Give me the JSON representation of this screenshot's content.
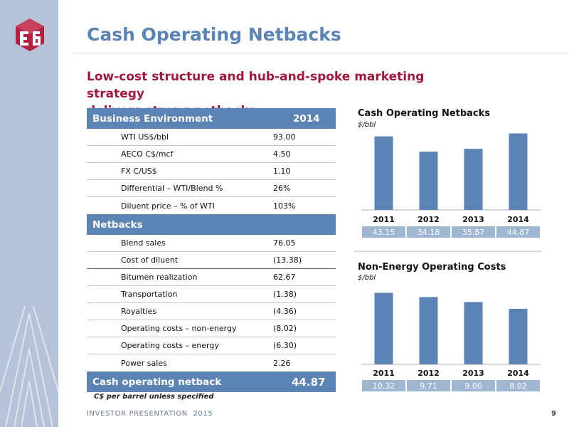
{
  "title": "Cash Operating Netbacks",
  "subtitle_line1": "Low-cost structure and hub-and-spoke marketing strategy",
  "subtitle_line2": "delivers strong netbacks",
  "table": {
    "business_header": "Business Environment",
    "business_year": "2014",
    "business_rows": [
      {
        "label": "WTI US$/bbl",
        "value": "93.00"
      },
      {
        "label": "AECO C$/mcf",
        "value": "4.50"
      },
      {
        "label": "FX C/US$",
        "value": "1.10"
      },
      {
        "label": "Differential – WTI/Blend %",
        "value": "26%"
      },
      {
        "label": "Diluent price – % of WTI",
        "value": "103%"
      }
    ],
    "netbacks_header": "Netbacks",
    "netbacks_rows": [
      {
        "label": "Blend sales",
        "value": "76.05"
      },
      {
        "label": "Cost of diluent",
        "value": "(13.38)"
      },
      {
        "label": "Bitumen realization",
        "value": "62.67"
      },
      {
        "label": "Transportation",
        "value": "(1.38)"
      },
      {
        "label": "Royalties",
        "value": "(4.36)"
      },
      {
        "label": "Operating costs – non-energy",
        "value": "(8.02)"
      },
      {
        "label": "Operating costs – energy",
        "value": "(6.30)"
      },
      {
        "label": "Power sales",
        "value": "2.26"
      }
    ],
    "total_label": "Cash operating netback",
    "total_value": "44.87",
    "note": "C$ per barrel unless specified"
  },
  "chart_data": [
    {
      "type": "bar",
      "title": "Cash Operating Netbacks",
      "unit": "$/bbl",
      "categories": [
        "2011",
        "2012",
        "2013",
        "2014"
      ],
      "values": [
        43.15,
        34.18,
        35.87,
        44.87
      ],
      "value_labels": [
        "43.15",
        "34.18",
        "35.87",
        "44.87"
      ],
      "ylim": [
        0,
        48
      ],
      "grid": false,
      "color": "#5b83b3"
    },
    {
      "type": "bar",
      "title": "Non-Energy Operating Costs",
      "unit": "$/bbl",
      "categories": [
        "2011",
        "2012",
        "2013",
        "2014"
      ],
      "values": [
        10.32,
        9.71,
        9.0,
        8.02
      ],
      "value_labels": [
        "10.32",
        "9.71",
        "9.00",
        "8.02"
      ],
      "ylim": [
        0,
        11.5
      ],
      "grid": false,
      "color": "#5b83b3"
    }
  ],
  "footer": {
    "label": "INVESTOR PRESENTATION",
    "year": "2015",
    "page": "9"
  },
  "colors": {
    "accent": "#5b83b3",
    "brand_red": "#a0193b",
    "sidebar": "#b6c2d8",
    "label_bg": "#9fb6d3"
  }
}
